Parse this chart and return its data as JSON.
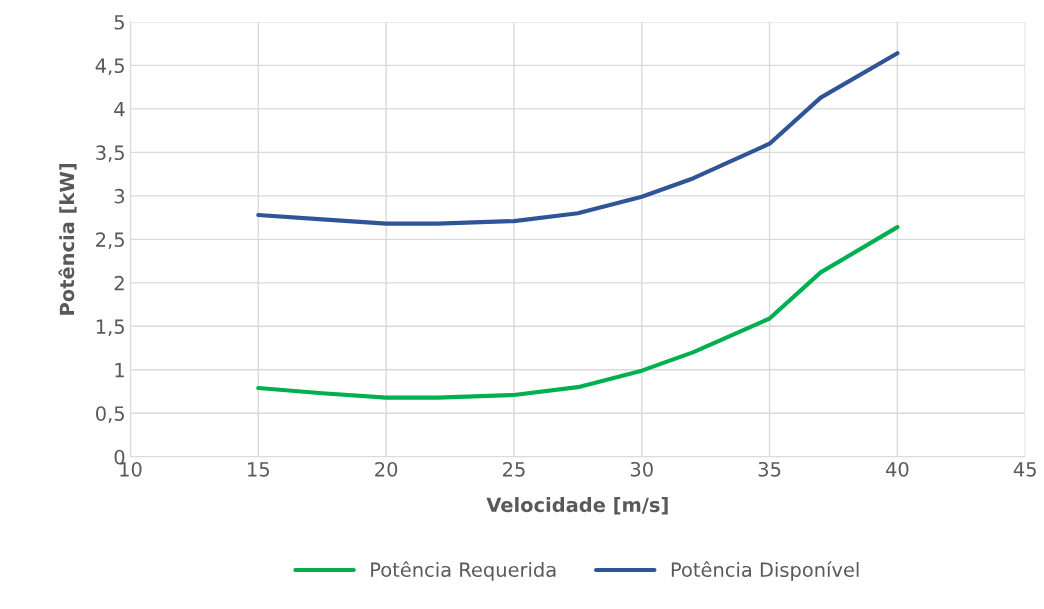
{
  "chart_data": {
    "type": "line",
    "xlabel": "Velocidade [m/s]",
    "ylabel": "Potência [kW]",
    "x": [
      15,
      17.5,
      20,
      22,
      25,
      27.5,
      30,
      32,
      35,
      37,
      40
    ],
    "series": [
      {
        "name": "Potência Requerida",
        "color": "#00b050",
        "values": [
          0.79,
          0.73,
          0.68,
          0.68,
          0.71,
          0.8,
          0.99,
          1.2,
          1.59,
          2.12,
          2.64
        ]
      },
      {
        "name": "Potência Disponível",
        "color": "#2f5597",
        "values": [
          2.78,
          2.73,
          2.68,
          2.68,
          2.71,
          2.8,
          2.99,
          3.2,
          3.6,
          4.13,
          4.64
        ]
      }
    ],
    "xlim": [
      10,
      45
    ],
    "xticks": [
      10,
      15,
      20,
      25,
      30,
      35,
      40,
      45
    ],
    "ylim": [
      0,
      5
    ],
    "yticks": [
      0,
      {
        "value": 0.5,
        "label": "0,5"
      },
      1,
      {
        "value": 1.5,
        "label": "1,5"
      },
      2,
      {
        "value": 2.5,
        "label": "2,5"
      },
      3,
      {
        "value": 3.5,
        "label": "3,5"
      },
      4,
      {
        "value": 4.5,
        "label": "4,5"
      },
      5
    ],
    "grid": true,
    "legend": "bottom",
    "marker": "none",
    "line_style": "solid"
  }
}
